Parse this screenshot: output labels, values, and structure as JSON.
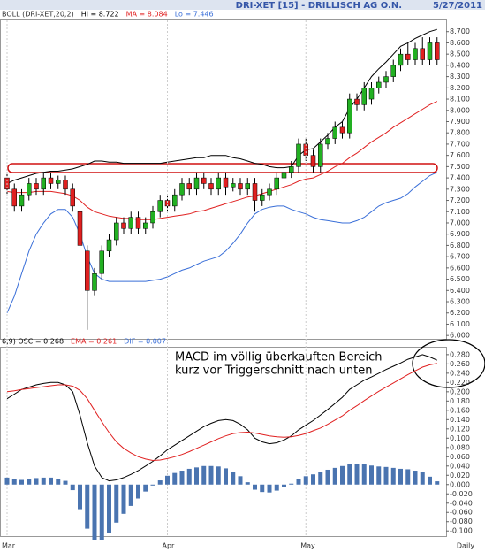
{
  "header": {
    "title": "DRI-XET [15] - DRILLISCH AG O.N.",
    "date": "5/27/2011"
  },
  "annotation": [
    "MACD im völlig überkauften Bereich",
    "kurz vor Triggerschnitt nach unten"
  ],
  "x_label": "Daily",
  "chart_data": [
    {
      "type": "candlestick",
      "legend": [
        {
          "text": "BOLL (DRI-XET,20,2)",
          "color": "#333333"
        },
        {
          "text": "Hi = 8.722",
          "color": "#000000"
        },
        {
          "text": "MA = 8.084",
          "color": "#e02020"
        },
        {
          "text": "Lo = 7.446",
          "color": "#3a6fd8"
        }
      ],
      "categories": [
        "Mar",
        null,
        null,
        null,
        null,
        null,
        null,
        null,
        null,
        null,
        null,
        null,
        null,
        null,
        null,
        null,
        null,
        null,
        null,
        null,
        null,
        null,
        "Apr",
        null,
        null,
        null,
        null,
        null,
        null,
        null,
        null,
        null,
        null,
        null,
        null,
        null,
        null,
        null,
        null,
        null,
        null,
        "May",
        null,
        null,
        null,
        null,
        null,
        null,
        null,
        null,
        null,
        null,
        null,
        null,
        null,
        null,
        null,
        null,
        null,
        null
      ],
      "up_color": "#22b022",
      "down_color": "#e02020",
      "candles": {
        "open": [
          7.4,
          7.3,
          7.15,
          7.25,
          7.35,
          7.3,
          7.4,
          7.35,
          7.38,
          7.3,
          7.1,
          6.75,
          6.4,
          6.55,
          6.75,
          6.85,
          7.0,
          6.95,
          7.05,
          6.95,
          7.0,
          7.1,
          7.2,
          7.15,
          7.25,
          7.35,
          7.3,
          7.4,
          7.35,
          7.3,
          7.4,
          7.32,
          7.35,
          7.3,
          7.35,
          7.2,
          7.25,
          7.3,
          7.4,
          7.45,
          7.5,
          7.7,
          7.6,
          7.5,
          7.7,
          7.75,
          7.85,
          7.8,
          8.1,
          8.05,
          8.1,
          8.2,
          8.25,
          8.3,
          8.4,
          8.5,
          8.45,
          8.55,
          8.45,
          8.6
        ],
        "high": [
          7.45,
          7.35,
          7.3,
          7.4,
          7.4,
          7.45,
          7.45,
          7.42,
          7.42,
          7.35,
          7.15,
          6.8,
          6.6,
          6.8,
          6.9,
          7.05,
          7.05,
          7.1,
          7.1,
          7.05,
          7.15,
          7.25,
          7.25,
          7.3,
          7.4,
          7.4,
          7.45,
          7.45,
          7.4,
          7.45,
          7.45,
          7.4,
          7.4,
          7.4,
          7.4,
          7.3,
          7.35,
          7.45,
          7.5,
          7.55,
          7.75,
          7.75,
          7.65,
          7.75,
          7.8,
          7.9,
          7.9,
          8.15,
          8.15,
          8.25,
          8.25,
          8.3,
          8.35,
          8.45,
          8.55,
          8.6,
          8.6,
          8.65,
          8.65,
          8.65
        ],
        "low": [
          7.25,
          7.1,
          7.1,
          7.2,
          7.25,
          7.25,
          7.3,
          7.3,
          7.25,
          7.1,
          6.75,
          6.05,
          6.35,
          6.5,
          6.7,
          6.8,
          6.9,
          6.9,
          6.9,
          6.9,
          6.95,
          7.05,
          7.1,
          7.1,
          7.2,
          7.25,
          7.25,
          7.3,
          7.25,
          7.25,
          7.25,
          7.28,
          7.25,
          7.25,
          7.1,
          7.15,
          7.2,
          7.25,
          7.35,
          7.4,
          7.45,
          7.55,
          7.45,
          7.45,
          7.65,
          7.7,
          7.75,
          7.75,
          8.0,
          8.0,
          8.05,
          8.15,
          8.2,
          8.25,
          8.35,
          8.4,
          8.4,
          8.4,
          8.4,
          8.4
        ],
        "close": [
          7.3,
          7.15,
          7.25,
          7.35,
          7.3,
          7.4,
          7.35,
          7.38,
          7.3,
          7.15,
          6.8,
          6.4,
          6.55,
          6.75,
          6.85,
          7.0,
          6.95,
          7.05,
          6.95,
          7.0,
          7.1,
          7.2,
          7.15,
          7.25,
          7.35,
          7.3,
          7.4,
          7.35,
          7.3,
          7.4,
          7.32,
          7.35,
          7.3,
          7.35,
          7.2,
          7.25,
          7.3,
          7.4,
          7.45,
          7.5,
          7.7,
          7.6,
          7.5,
          7.7,
          7.75,
          7.85,
          7.8,
          8.1,
          8.05,
          8.2,
          8.2,
          8.25,
          8.3,
          8.4,
          8.5,
          8.45,
          8.55,
          8.45,
          8.6,
          8.45
        ]
      },
      "series": [
        {
          "color": "#000000",
          "values": [
            7.35,
            7.38,
            7.4,
            7.42,
            7.44,
            7.45,
            7.46,
            7.46,
            7.47,
            7.48,
            7.5,
            7.52,
            7.55,
            7.55,
            7.54,
            7.54,
            7.53,
            7.53,
            7.53,
            7.53,
            7.53,
            7.53,
            7.54,
            7.55,
            7.56,
            7.57,
            7.58,
            7.58,
            7.6,
            7.6,
            7.6,
            7.58,
            7.57,
            7.55,
            7.53,
            7.52,
            7.5,
            7.49,
            7.49,
            7.5,
            7.6,
            7.65,
            7.66,
            7.72,
            7.78,
            7.85,
            7.9,
            8.02,
            8.1,
            8.2,
            8.3,
            8.37,
            8.43,
            8.5,
            8.57,
            8.6,
            8.64,
            8.67,
            8.7,
            8.72
          ]
        },
        {
          "color": "#e02020",
          "values": [
            7.28,
            7.27,
            7.27,
            7.27,
            7.28,
            7.28,
            7.28,
            7.27,
            7.26,
            7.24,
            7.2,
            7.14,
            7.1,
            7.08,
            7.06,
            7.05,
            7.04,
            7.04,
            7.03,
            7.03,
            7.03,
            7.04,
            7.05,
            7.06,
            7.07,
            7.08,
            7.1,
            7.11,
            7.13,
            7.15,
            7.17,
            7.19,
            7.21,
            7.23,
            7.24,
            7.26,
            7.28,
            7.3,
            7.32,
            7.34,
            7.37,
            7.39,
            7.4,
            7.43,
            7.46,
            7.5,
            7.53,
            7.58,
            7.62,
            7.67,
            7.72,
            7.76,
            7.8,
            7.85,
            7.89,
            7.93,
            7.97,
            8.01,
            8.05,
            8.08
          ]
        },
        {
          "color": "#3a6fd8",
          "values": [
            6.2,
            6.35,
            6.55,
            6.75,
            6.9,
            7.0,
            7.08,
            7.12,
            7.12,
            7.05,
            6.9,
            6.7,
            6.55,
            6.5,
            6.48,
            6.48,
            6.48,
            6.48,
            6.48,
            6.48,
            6.49,
            6.5,
            6.52,
            6.55,
            6.58,
            6.6,
            6.63,
            6.66,
            6.68,
            6.7,
            6.75,
            6.82,
            6.9,
            7.0,
            7.08,
            7.12,
            7.14,
            7.15,
            7.15,
            7.12,
            7.1,
            7.08,
            7.05,
            7.03,
            7.02,
            7.01,
            7.0,
            7.0,
            7.02,
            7.05,
            7.1,
            7.15,
            7.18,
            7.2,
            7.22,
            7.26,
            7.32,
            7.37,
            7.42,
            7.45
          ]
        }
      ],
      "ylim": [
        5.97,
        8.8
      ],
      "yticks": [
        {
          "value": 6.0,
          "label": "6.000"
        },
        {
          "value": 6.1,
          "label": "6.100"
        },
        {
          "value": 6.2,
          "label": "6.200"
        },
        {
          "value": 6.3,
          "label": "6.300"
        },
        {
          "value": 6.4,
          "label": "6.400"
        },
        {
          "value": 6.5,
          "label": "6.500"
        },
        {
          "value": 6.6,
          "label": "6.600"
        },
        {
          "value": 6.7,
          "label": "6.700"
        },
        {
          "value": 6.8,
          "label": "6.800"
        },
        {
          "value": 6.9,
          "label": "6.900"
        },
        {
          "value": 7.0,
          "label": "7.000"
        },
        {
          "value": 7.1,
          "label": "7.100"
        },
        {
          "value": 7.2,
          "label": "7.200"
        },
        {
          "value": 7.3,
          "label": "7.300"
        },
        {
          "value": 7.4,
          "label": "7.400"
        },
        {
          "value": 7.5,
          "label": "7.500"
        },
        {
          "value": 7.6,
          "label": "7.600"
        },
        {
          "value": 7.7,
          "label": "7.700"
        },
        {
          "value": 7.8,
          "label": "7.800"
        },
        {
          "value": 7.9,
          "label": "7.900"
        },
        {
          "value": 8.0,
          "label": "8.000"
        },
        {
          "value": 8.1,
          "label": "8.100"
        },
        {
          "value": 8.2,
          "label": "8.200"
        },
        {
          "value": 8.3,
          "label": "8.300"
        },
        {
          "value": 8.4,
          "label": "8.400"
        },
        {
          "value": 8.5,
          "label": "8.500"
        },
        {
          "value": 8.6,
          "label": "8.600"
        },
        {
          "value": 8.7,
          "label": "8.700"
        }
      ]
    },
    {
      "type": "macd",
      "legend": [
        {
          "text": "6,9) OSC = 0.268",
          "color": "#000000"
        },
        {
          "text": "EMA = 0.261",
          "color": "#e02020"
        },
        {
          "text": "DIF = 0.007",
          "color": "#3a6fd8"
        }
      ],
      "series": [
        {
          "kind": "line",
          "color": "#000000",
          "values": [
            0.185,
            0.195,
            0.205,
            0.21,
            0.215,
            0.218,
            0.22,
            0.22,
            0.215,
            0.2,
            0.15,
            0.09,
            0.04,
            0.015,
            0.008,
            0.01,
            0.015,
            0.022,
            0.03,
            0.04,
            0.05,
            0.062,
            0.075,
            0.085,
            0.095,
            0.105,
            0.115,
            0.125,
            0.132,
            0.138,
            0.14,
            0.138,
            0.13,
            0.118,
            0.1,
            0.092,
            0.088,
            0.09,
            0.096,
            0.105,
            0.118,
            0.128,
            0.138,
            0.15,
            0.162,
            0.175,
            0.188,
            0.205,
            0.215,
            0.225,
            0.232,
            0.24,
            0.248,
            0.255,
            0.262,
            0.27,
            0.275,
            0.28,
            0.275,
            0.268
          ]
        },
        {
          "kind": "line",
          "color": "#e02020",
          "values": [
            0.2,
            0.202,
            0.205,
            0.207,
            0.209,
            0.211,
            0.213,
            0.215,
            0.215,
            0.212,
            0.203,
            0.185,
            0.16,
            0.135,
            0.112,
            0.092,
            0.078,
            0.068,
            0.06,
            0.055,
            0.052,
            0.053,
            0.056,
            0.06,
            0.065,
            0.071,
            0.078,
            0.085,
            0.092,
            0.099,
            0.105,
            0.11,
            0.112,
            0.113,
            0.111,
            0.108,
            0.105,
            0.103,
            0.102,
            0.103,
            0.106,
            0.11,
            0.116,
            0.122,
            0.13,
            0.139,
            0.148,
            0.16,
            0.17,
            0.181,
            0.191,
            0.201,
            0.21,
            0.219,
            0.228,
            0.237,
            0.245,
            0.253,
            0.258,
            0.261
          ]
        },
        {
          "kind": "bar",
          "color": "#4a74b0",
          "values": [
            0.015,
            0.012,
            0.01,
            0.012,
            0.014,
            0.015,
            0.015,
            0.012,
            0.008,
            -0.012,
            -0.053,
            -0.095,
            -0.12,
            -0.12,
            -0.104,
            -0.082,
            -0.063,
            -0.046,
            -0.03,
            -0.015,
            -0.002,
            0.009,
            0.019,
            0.025,
            0.03,
            0.034,
            0.037,
            0.04,
            0.04,
            0.039,
            0.035,
            0.028,
            0.018,
            0.005,
            -0.011,
            -0.016,
            -0.017,
            -0.013,
            -0.006,
            0.002,
            0.012,
            0.018,
            0.022,
            0.028,
            0.032,
            0.036,
            0.04,
            0.045,
            0.045,
            0.044,
            0.041,
            0.039,
            0.038,
            0.036,
            0.034,
            0.033,
            0.03,
            0.027,
            0.017,
            0.007
          ]
        }
      ],
      "ylim": [
        -0.111,
        0.295
      ],
      "yticks": [
        {
          "value": -0.1,
          "label": "-0.100"
        },
        {
          "value": -0.08,
          "label": "-0.080"
        },
        {
          "value": -0.06,
          "label": "-0.060"
        },
        {
          "value": -0.04,
          "label": "-0.040"
        },
        {
          "value": -0.02,
          "label": "-0.020"
        },
        {
          "value": 0,
          "label": "0.000"
        },
        {
          "value": 0.02,
          "label": "0.020"
        },
        {
          "value": 0.04,
          "label": "0.040"
        },
        {
          "value": 0.06,
          "label": "0.060"
        },
        {
          "value": 0.08,
          "label": "0.080"
        },
        {
          "value": 0.1,
          "label": "0.100"
        },
        {
          "value": 0.12,
          "label": "0.120"
        },
        {
          "value": 0.14,
          "label": "0.140"
        },
        {
          "value": 0.16,
          "label": "0.160"
        },
        {
          "value": 0.18,
          "label": "0.180"
        },
        {
          "value": 0.2,
          "label": "0.200"
        },
        {
          "value": 0.22,
          "label": "0.220"
        },
        {
          "value": 0.24,
          "label": "0.240"
        },
        {
          "value": 0.26,
          "label": "0.260"
        },
        {
          "value": 0.28,
          "label": "0.280"
        }
      ]
    }
  ]
}
